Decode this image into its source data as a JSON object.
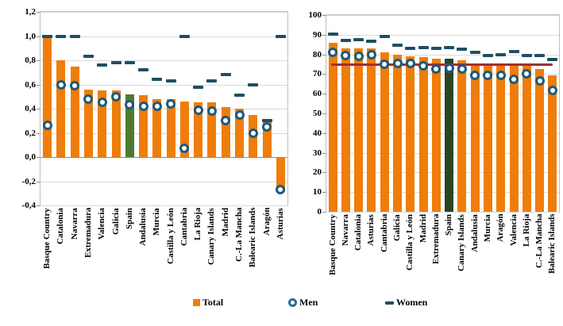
{
  "legend": {
    "items": [
      {
        "label": "Total",
        "marker": "square",
        "color": "#ef7d09"
      },
      {
        "label": "Men",
        "marker": "circle",
        "color": "#2c6e93"
      },
      {
        "label": "Women",
        "marker": "dash",
        "color": "#1f4e63"
      }
    ]
  },
  "chart_data": [
    {
      "type": "bar",
      "title": "",
      "categories": [
        "Basque Country",
        "Catalonia",
        "Navarra",
        "Extremadura",
        "Valencia",
        "Galicia",
        "Spain",
        "Andalusia",
        "Murcia",
        "Castilla y León",
        "Cantabria",
        "La Rioja",
        "Canary Islands",
        "Madrid",
        "C.-La Mancha",
        "Balearic Islands",
        "Aragón",
        "Asturias"
      ],
      "series": [
        {
          "name": "Total",
          "kind": "bar",
          "values": [
            1.0,
            0.8,
            0.75,
            0.56,
            0.55,
            0.55,
            0.52,
            0.51,
            0.48,
            0.48,
            0.46,
            0.45,
            0.45,
            0.41,
            0.4,
            0.35,
            0.31,
            -0.29
          ]
        },
        {
          "name": "Men",
          "kind": "circle",
          "color": "#1c5a7d",
          "values": [
            0.26,
            0.6,
            0.59,
            0.48,
            0.45,
            0.5,
            0.43,
            0.42,
            0.42,
            0.44,
            0.07,
            0.39,
            0.38,
            0.3,
            0.35,
            0.2,
            0.25,
            -0.27
          ]
        },
        {
          "name": "Women",
          "kind": "dash",
          "color": "#1f4e63",
          "values": [
            1.0,
            1.0,
            1.0,
            0.83,
            0.76,
            0.78,
            0.78,
            0.72,
            0.64,
            0.63,
            1.0,
            0.58,
            0.63,
            0.68,
            0.51,
            0.6,
            0.3,
            1.0
          ]
        }
      ],
      "bar_color": "#ef7d09",
      "highlight_category": "Spain",
      "highlight_color": "#4e7b30",
      "ylim": [
        -0.4,
        1.2
      ],
      "grid": true,
      "zero_axis": true,
      "legend_position": "bottom",
      "yticks": [
        {
          "v": 1.2,
          "label": "1,2"
        },
        {
          "v": 1.0,
          "label": "1,0"
        },
        {
          "v": 0.8,
          "label": "0,8"
        },
        {
          "v": 0.6,
          "label": "0,6"
        },
        {
          "v": 0.4,
          "label": "0,4"
        },
        {
          "v": 0.2,
          "label": "0,2"
        },
        {
          "v": 0.0,
          "label": "0,0"
        },
        {
          "v": -0.2,
          "label": "-0,2"
        },
        {
          "v": -0.4,
          "label": "-0,4"
        }
      ]
    },
    {
      "type": "bar",
      "title": "",
      "categories": [
        "Basque Country",
        "Navarra",
        "Catalonia",
        "Asturias",
        "Cantabria",
        "Galicia",
        "Castilla y León",
        "Madrid",
        "Extremadura",
        "Spain",
        "Canary Islands",
        "Andalusia",
        "Murcia",
        "Aragón",
        "Valencia",
        "La Rioja",
        "C.-La Mancha",
        "Balearic Islands"
      ],
      "series": [
        {
          "name": "Total",
          "kind": "bar",
          "values": [
            86,
            83,
            83,
            83,
            81,
            80,
            79,
            78.5,
            78,
            78,
            77,
            75.5,
            75.5,
            75,
            75,
            74.5,
            72.5,
            69.5
          ]
        },
        {
          "name": "Men",
          "kind": "circle",
          "color": "#1c5a7d",
          "values": [
            81,
            79.5,
            79,
            80,
            75,
            75.5,
            75.5,
            74,
            72.5,
            73,
            72.5,
            69.5,
            69.5,
            69.5,
            67.5,
            70,
            66.5,
            61.5
          ]
        },
        {
          "name": "Women",
          "kind": "dash",
          "color": "#1f4e63",
          "values": [
            90.5,
            87,
            87.5,
            86.5,
            89,
            84.5,
            83,
            83.5,
            83,
            83.5,
            82.5,
            81,
            79.5,
            80,
            81.5,
            79.5,
            79.5,
            77.5
          ]
        }
      ],
      "bar_color": "#ef7d09",
      "highlight_category": "Spain",
      "highlight_color": "#2a4522",
      "ref_line": {
        "value": 75,
        "color": "#9e3038"
      },
      "ylim": [
        0,
        100
      ],
      "grid": true,
      "zero_axis": false,
      "legend_position": "bottom",
      "yticks": [
        {
          "v": 100,
          "label": "100"
        },
        {
          "v": 90,
          "label": "90"
        },
        {
          "v": 80,
          "label": "80"
        },
        {
          "v": 70,
          "label": "70"
        },
        {
          "v": 60,
          "label": "60"
        },
        {
          "v": 50,
          "label": "50"
        },
        {
          "v": 40,
          "label": "40"
        },
        {
          "v": 30,
          "label": "30"
        },
        {
          "v": 20,
          "label": "20"
        },
        {
          "v": 10,
          "label": "10"
        },
        {
          "v": 0,
          "label": "0"
        }
      ]
    }
  ]
}
